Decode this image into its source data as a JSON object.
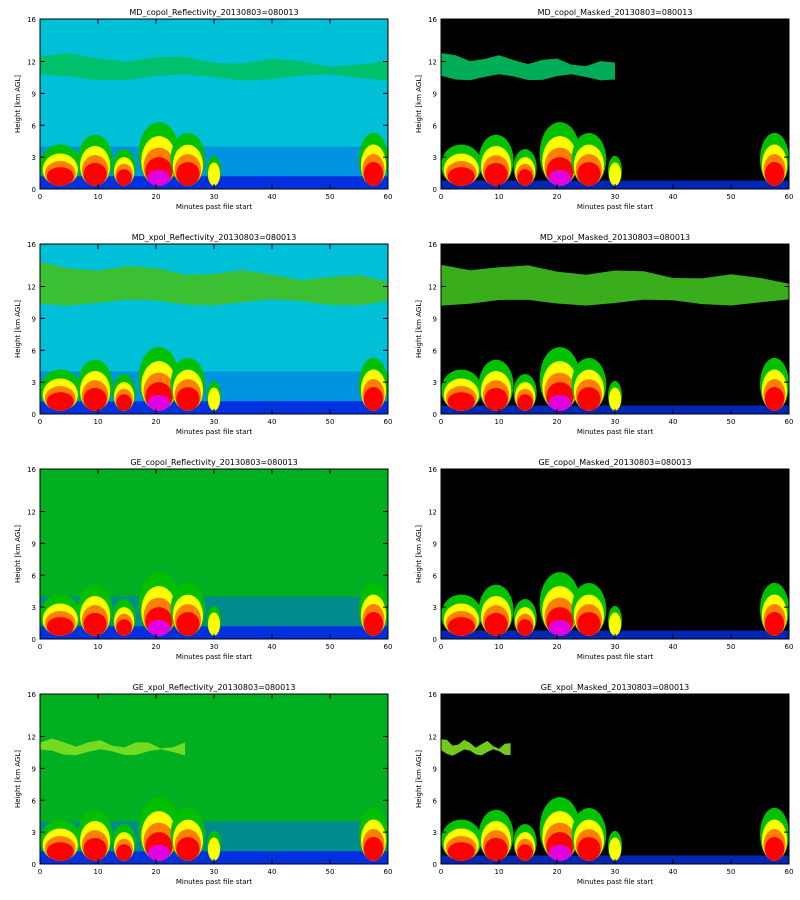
{
  "chart_data": [
    {
      "type": "heatmap",
      "title": "MD_copol_Reflectivity_20130803=080013",
      "xlabel": "Minutes past file start",
      "ylabel": "Height [km AGL]",
      "xlim": [
        0,
        60
      ],
      "ylim": [
        0,
        16
      ],
      "xticks": [
        0,
        10,
        20,
        30,
        40,
        50,
        60
      ],
      "yticks": [
        0,
        3,
        6,
        9,
        12,
        16
      ],
      "masked": false,
      "background": "#00c0d8",
      "layer_band_km": [
        10.5,
        12.5
      ],
      "layer_color": "#00c060",
      "layer_span_min": [
        0,
        60
      ]
    },
    {
      "type": "heatmap",
      "title": "MD_copol_Masked_20130803=080013",
      "xlabel": "Minutes past file start",
      "ylabel": "Height [km AGL]",
      "xlim": [
        0,
        60
      ],
      "ylim": [
        0,
        16
      ],
      "xticks": [
        0,
        10,
        20,
        30,
        40,
        50,
        60
      ],
      "yticks": [
        0,
        3,
        6,
        9,
        12,
        16
      ],
      "masked": true,
      "background": "#000000",
      "layer_band_km": [
        10.5,
        12.5
      ],
      "layer_color": "#00c060",
      "layer_span_min": [
        0,
        30
      ]
    },
    {
      "type": "heatmap",
      "title": "MD_xpol_Reflectivity_20130803=080013",
      "xlabel": "Minutes past file start",
      "ylabel": "Height [km AGL]",
      "xlim": [
        0,
        60
      ],
      "ylim": [
        0,
        16
      ],
      "xticks": [
        0,
        10,
        20,
        30,
        40,
        50,
        60
      ],
      "yticks": [
        0,
        3,
        6,
        9,
        12,
        16
      ],
      "masked": false,
      "background": "#00c0d8",
      "layer_band_km": [
        10.5,
        14
      ],
      "layer_color": "#40c020",
      "layer_span_min": [
        0,
        60
      ]
    },
    {
      "type": "heatmap",
      "title": "MD_xpol_Masked_20130803=080013",
      "xlabel": "Minutes past file start",
      "ylabel": "Height [km AGL]",
      "xlim": [
        0,
        60
      ],
      "ylim": [
        0,
        16
      ],
      "xticks": [
        0,
        10,
        20,
        30,
        40,
        50,
        60
      ],
      "yticks": [
        0,
        3,
        6,
        9,
        12,
        16
      ],
      "masked": true,
      "background": "#000000",
      "layer_band_km": [
        10.5,
        14
      ],
      "layer_color": "#40c020",
      "layer_span_min": [
        0,
        60
      ]
    },
    {
      "type": "heatmap",
      "title": "GE_copol_Reflectivity_20130803=080013",
      "xlabel": "Minutes past file start",
      "ylabel": "Height [km AGL]",
      "xlim": [
        0,
        60
      ],
      "ylim": [
        0,
        16
      ],
      "xticks": [
        0,
        10,
        20,
        30,
        40,
        50,
        60
      ],
      "yticks": [
        0,
        3,
        6,
        9,
        12,
        16
      ],
      "masked": false,
      "background": "#00b020",
      "layer_band_km": [],
      "layer_color": "#00b020",
      "layer_span_min": [
        0,
        0
      ]
    },
    {
      "type": "heatmap",
      "title": "GE_copol_Masked_20130803=080013",
      "xlabel": "Minutes past file start",
      "ylabel": "Height [km AGL]",
      "xlim": [
        0,
        60
      ],
      "ylim": [
        0,
        16
      ],
      "xticks": [
        0,
        10,
        20,
        30,
        40,
        50,
        60
      ],
      "yticks": [
        0,
        3,
        6,
        9,
        12,
        16
      ],
      "masked": true,
      "background": "#000000",
      "layer_band_km": [],
      "layer_color": "#00b020",
      "layer_span_min": [
        0,
        0
      ]
    },
    {
      "type": "heatmap",
      "title": "GE_xpol_Reflectivity_20130803=080013",
      "xlabel": "Minutes past file start",
      "ylabel": "Height [km AGL]",
      "xlim": [
        0,
        60
      ],
      "ylim": [
        0,
        16
      ],
      "xticks": [
        0,
        10,
        20,
        30,
        40,
        50,
        60
      ],
      "yticks": [
        0,
        3,
        6,
        9,
        12,
        16
      ],
      "masked": false,
      "background": "#00b020",
      "layer_band_km": [
        10.5,
        11.5
      ],
      "layer_color": "#80e020",
      "layer_span_min": [
        0,
        25
      ]
    },
    {
      "type": "heatmap",
      "title": "GE_xpol_Masked_20130803=080013",
      "xlabel": "Minutes past file start",
      "ylabel": "Height [km AGL]",
      "xlim": [
        0,
        60
      ],
      "ylim": [
        0,
        16
      ],
      "xticks": [
        0,
        10,
        20,
        30,
        40,
        50,
        60
      ],
      "yticks": [
        0,
        3,
        6,
        9,
        12,
        16
      ],
      "masked": true,
      "background": "#000000",
      "layer_band_km": [
        10.5,
        11.5
      ],
      "layer_color": "#80e020",
      "layer_span_min": [
        0,
        12
      ]
    }
  ],
  "colors": {
    "low_echo": "#0030e0",
    "weak": "#00c8f0",
    "moderate": "#00c000",
    "strong": "#ffff00",
    "very_strong": "#ff8000",
    "intense": "#ff0000",
    "extreme": "#e000e0"
  }
}
